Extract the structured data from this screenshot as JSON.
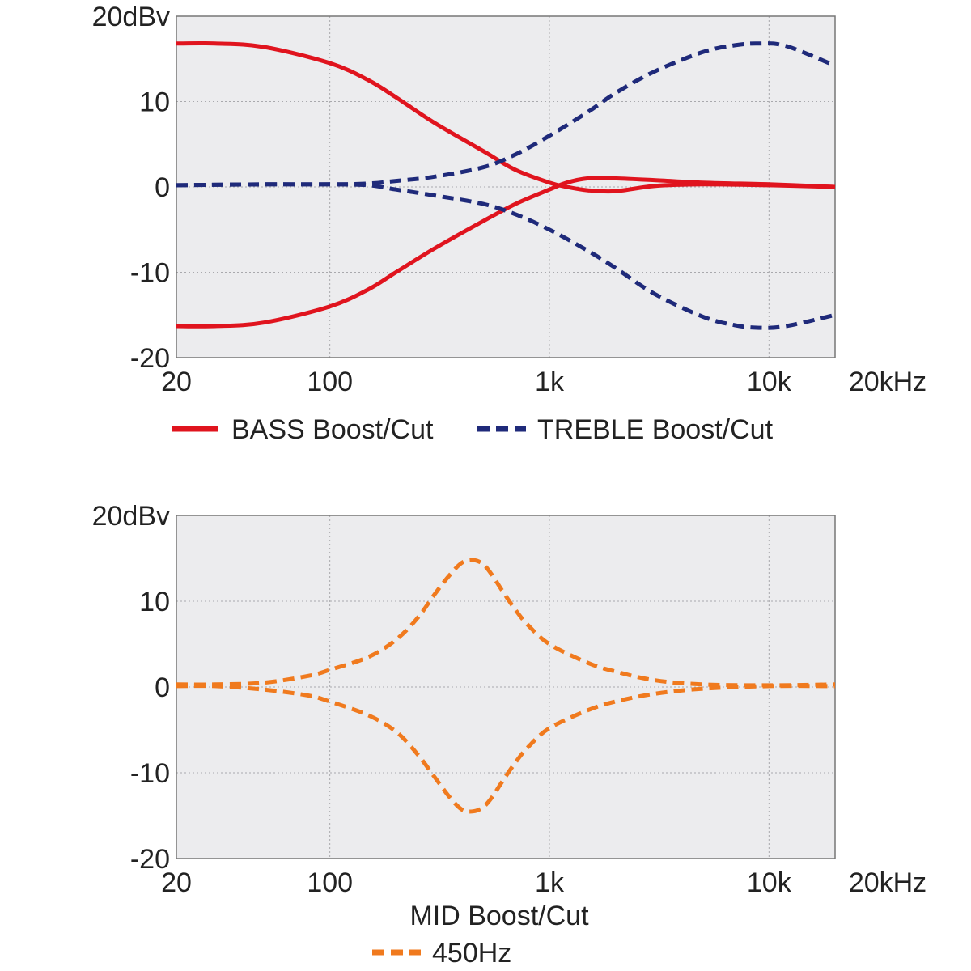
{
  "chart_data": [
    {
      "type": "line",
      "x_scale": "log",
      "xlim": [
        20,
        20000
      ],
      "ylim": [
        -20,
        20
      ],
      "grid": true,
      "y_ticks": [
        {
          "value": 20,
          "label": "20dBv"
        },
        {
          "value": 10,
          "label": "10"
        },
        {
          "value": 0,
          "label": "0"
        },
        {
          "value": -10,
          "label": "-10"
        },
        {
          "value": -20,
          "label": "-20"
        }
      ],
      "x_ticks": [
        {
          "value": 20,
          "label": "20"
        },
        {
          "value": 100,
          "label": "100"
        },
        {
          "value": 1000,
          "label": "1k"
        },
        {
          "value": 10000,
          "label": "10k"
        },
        {
          "value": 20000,
          "label": "20kHz"
        }
      ],
      "legend_position": "bottom",
      "series": [
        {
          "name": "BASS Boost/Cut",
          "style": "solid",
          "color": "#e0141e",
          "x": [
            20,
            30,
            50,
            100,
            150,
            200,
            300,
            500,
            700,
            1000,
            1200,
            1500,
            2000,
            3000,
            5000,
            10000,
            20000
          ],
          "y": [
            16.8,
            16.8,
            16.4,
            14.5,
            12.5,
            10.5,
            7.5,
            4.2,
            2.0,
            0.5,
            0.0,
            -0.4,
            -0.5,
            0.1,
            0.3,
            0.2,
            0.0
          ]
        },
        {
          "name": "BASS Boost/Cut",
          "style": "solid",
          "color": "#e0141e",
          "x": [
            20,
            30,
            50,
            100,
            150,
            200,
            300,
            500,
            700,
            1000,
            1200,
            1500,
            2000,
            3000,
            5000,
            10000,
            20000
          ],
          "y": [
            -16.3,
            -16.3,
            -15.9,
            -14.0,
            -12.0,
            -10.0,
            -7.2,
            -4.0,
            -2.0,
            -0.3,
            0.5,
            1.0,
            1.0,
            0.8,
            0.5,
            0.3,
            0.0
          ]
        },
        {
          "name": "TREBLE Boost/Cut",
          "style": "dashed",
          "color": "#1f2a7a",
          "x": [
            20,
            50,
            100,
            150,
            200,
            300,
            500,
            700,
            1000,
            1500,
            2000,
            3000,
            5000,
            7000,
            9000,
            12000,
            20000
          ],
          "y": [
            0.2,
            0.3,
            0.3,
            0.4,
            0.7,
            1.2,
            2.3,
            3.8,
            6.0,
            8.8,
            11.0,
            13.5,
            15.8,
            16.6,
            16.8,
            16.5,
            14.2
          ]
        },
        {
          "name": "TREBLE Boost/Cut",
          "style": "dashed",
          "color": "#1f2a7a",
          "x": [
            20,
            50,
            100,
            150,
            200,
            300,
            500,
            700,
            1000,
            1500,
            2000,
            3000,
            5000,
            7000,
            9000,
            12000,
            20000
          ],
          "y": [
            0.2,
            0.3,
            0.3,
            0.2,
            -0.3,
            -1.0,
            -2.0,
            -3.2,
            -5.0,
            -7.5,
            -9.5,
            -12.5,
            -15.2,
            -16.2,
            -16.5,
            -16.3,
            -15.0
          ]
        }
      ],
      "legend": [
        {
          "label": "BASS Boost/Cut",
          "style": "solid",
          "color": "#e0141e"
        },
        {
          "label": "TREBLE Boost/Cut",
          "style": "dashed",
          "color": "#1f2a7a"
        }
      ]
    },
    {
      "type": "line",
      "x_scale": "log",
      "xlim": [
        20,
        20000
      ],
      "ylim": [
        -20,
        20
      ],
      "grid": true,
      "y_ticks": [
        {
          "value": 20,
          "label": "20dBv"
        },
        {
          "value": 10,
          "label": "10"
        },
        {
          "value": 0,
          "label": "0"
        },
        {
          "value": -10,
          "label": "-10"
        },
        {
          "value": -20,
          "label": "-20"
        }
      ],
      "x_ticks": [
        {
          "value": 20,
          "label": "20"
        },
        {
          "value": 100,
          "label": "100"
        },
        {
          "value": 1000,
          "label": "1k"
        },
        {
          "value": 10000,
          "label": "10k"
        },
        {
          "value": 20000,
          "label": "20kHz"
        }
      ],
      "title": "MID Boost/Cut",
      "legend_position": "bottom",
      "series": [
        {
          "name": "450Hz",
          "style": "dashed",
          "color": "#f07a1e",
          "x": [
            20,
            30,
            50,
            80,
            100,
            150,
            200,
            250,
            300,
            350,
            400,
            450,
            500,
            550,
            600,
            700,
            800,
            1000,
            1500,
            2000,
            3000,
            5000,
            10000,
            20000
          ],
          "y": [
            0.3,
            0.3,
            0.5,
            1.3,
            2.0,
            3.5,
            5.5,
            8.0,
            10.8,
            13.0,
            14.5,
            14.8,
            14.3,
            13.0,
            11.5,
            9.0,
            7.2,
            5.0,
            2.8,
            1.8,
            0.8,
            0.3,
            0.2,
            0.3
          ]
        },
        {
          "name": "450Hz",
          "style": "dashed",
          "color": "#f07a1e",
          "x": [
            20,
            30,
            50,
            80,
            100,
            150,
            200,
            250,
            300,
            350,
            400,
            450,
            500,
            550,
            600,
            700,
            800,
            1000,
            1500,
            2000,
            3000,
            5000,
            10000,
            20000
          ],
          "y": [
            0.1,
            0.1,
            -0.3,
            -1.0,
            -1.7,
            -3.3,
            -5.2,
            -7.8,
            -10.5,
            -12.8,
            -14.3,
            -14.5,
            -14.0,
            -12.8,
            -11.3,
            -8.8,
            -7.0,
            -4.8,
            -2.7,
            -1.7,
            -0.8,
            -0.2,
            0.1,
            0.1
          ]
        }
      ],
      "legend": [
        {
          "label": "450Hz",
          "style": "dashed",
          "color": "#f07a1e"
        }
      ]
    }
  ]
}
